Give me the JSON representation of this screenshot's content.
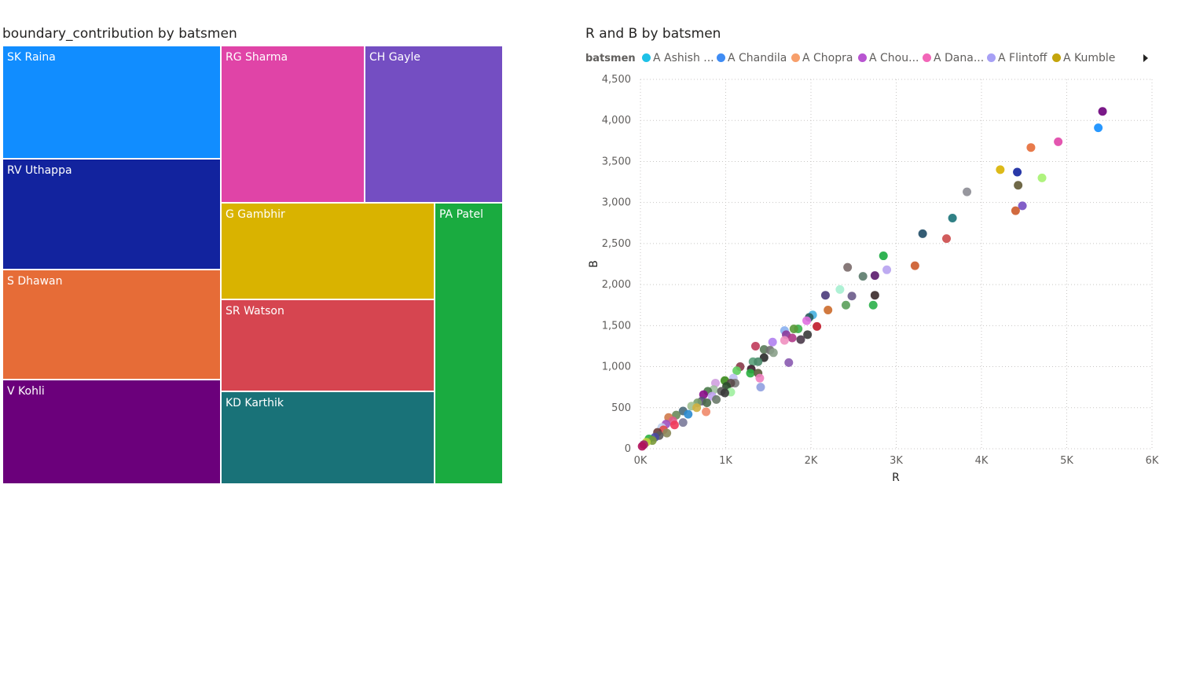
{
  "chart_data": [
    {
      "type": "treemap",
      "title": "boundary_contribution by batsmen",
      "tiles": [
        {
          "label": "SK Raina",
          "color": "#118dff"
        },
        {
          "label": "RV Uthappa",
          "color": "#12239e"
        },
        {
          "label": "S Dhawan",
          "color": "#e66c37"
        },
        {
          "label": "V Kohli",
          "color": "#6b007b"
        },
        {
          "label": "RG Sharma",
          "color": "#e044a7"
        },
        {
          "label": "CH Gayle",
          "color": "#744ec2"
        },
        {
          "label": "G Gambhir",
          "color": "#d9b300"
        },
        {
          "label": "SR Watson",
          "color": "#d64550"
        },
        {
          "label": "KD Karthik",
          "color": "#197278"
        },
        {
          "label": "PA Patel",
          "color": "#1aab40"
        }
      ]
    },
    {
      "type": "scatter",
      "title": "R and B by batsmen",
      "xlabel": "R",
      "ylabel": "B",
      "xlim": [
        0,
        6000
      ],
      "ylim": [
        0,
        4500
      ],
      "grid": true,
      "legend_title": "batsmen",
      "legend_position": "top",
      "legend": [
        {
          "name": "A Ashish ...",
          "color": "#1ec1e7"
        },
        {
          "name": "A Chandila",
          "color": "#3f8cf4"
        },
        {
          "name": "A Chopra",
          "color": "#f79f6b"
        },
        {
          "name": "A Chou...",
          "color": "#b855d1"
        },
        {
          "name": "A Dana...",
          "color": "#f266b8"
        },
        {
          "name": "A Flintoff",
          "color": "#a7a0f5"
        },
        {
          "name": "A Kumble",
          "color": "#c4a50c"
        }
      ],
      "x_ticks": [
        "0K",
        "1K",
        "2K",
        "3K",
        "4K",
        "5K",
        "6K"
      ],
      "y_ticks": [
        "0",
        "500",
        "1,000",
        "1,500",
        "2,000",
        "2,500",
        "3,000",
        "3,500",
        "4,000",
        "4,500"
      ],
      "points": [
        {
          "x": 5420,
          "y": 4110,
          "color": "#6b007b"
        },
        {
          "x": 5370,
          "y": 3910,
          "color": "#118dff"
        },
        {
          "x": 4900,
          "y": 3740,
          "color": "#e044a7"
        },
        {
          "x": 4580,
          "y": 3670,
          "color": "#e66c37"
        },
        {
          "x": 4220,
          "y": 3400,
          "color": "#d9b300"
        },
        {
          "x": 4420,
          "y": 3370,
          "color": "#12239e"
        },
        {
          "x": 4710,
          "y": 3300,
          "color": "#a6f270"
        },
        {
          "x": 4430,
          "y": 3210,
          "color": "#605934"
        },
        {
          "x": 3830,
          "y": 3130,
          "color": "#8c8c93"
        },
        {
          "x": 4480,
          "y": 2960,
          "color": "#744ec2"
        },
        {
          "x": 4400,
          "y": 2900,
          "color": "#cc5a2a"
        },
        {
          "x": 3660,
          "y": 2810,
          "color": "#197278"
        },
        {
          "x": 3310,
          "y": 2620,
          "color": "#1f4b66"
        },
        {
          "x": 3590,
          "y": 2560,
          "color": "#cc4a4a"
        },
        {
          "x": 2850,
          "y": 2350,
          "color": "#1aab40"
        },
        {
          "x": 3220,
          "y": 2230,
          "color": "#cc5a2a"
        },
        {
          "x": 2430,
          "y": 2210,
          "color": "#7a6a6a"
        },
        {
          "x": 2890,
          "y": 2180,
          "color": "#b7a2f0"
        },
        {
          "x": 2750,
          "y": 2110,
          "color": "#5a1a6b"
        },
        {
          "x": 2610,
          "y": 2100,
          "color": "#5a7a6a"
        },
        {
          "x": 2340,
          "y": 1940,
          "color": "#a6f0d0"
        },
        {
          "x": 2170,
          "y": 1870,
          "color": "#4a3a7a"
        },
        {
          "x": 2480,
          "y": 1860,
          "color": "#6a5a8a"
        },
        {
          "x": 2750,
          "y": 1870,
          "color": "#3a2a2a"
        },
        {
          "x": 2410,
          "y": 1750,
          "color": "#5aa05a"
        },
        {
          "x": 2730,
          "y": 1750,
          "color": "#2ab04a"
        },
        {
          "x": 2200,
          "y": 1690,
          "color": "#cc6a2a"
        },
        {
          "x": 2020,
          "y": 1630,
          "color": "#45b0e0"
        },
        {
          "x": 1980,
          "y": 1600,
          "color": "#2a5a5a"
        },
        {
          "x": 1950,
          "y": 1560,
          "color": "#e070e0"
        },
        {
          "x": 2070,
          "y": 1490,
          "color": "#c01a2a"
        },
        {
          "x": 1850,
          "y": 1460,
          "color": "#3ab04a"
        },
        {
          "x": 1800,
          "y": 1460,
          "color": "#5a9a3a"
        },
        {
          "x": 1690,
          "y": 1440,
          "color": "#8ab0f0"
        },
        {
          "x": 1710,
          "y": 1390,
          "color": "#8a3a9a"
        },
        {
          "x": 1960,
          "y": 1390,
          "color": "#3a3a3a"
        },
        {
          "x": 1780,
          "y": 1350,
          "color": "#b03a8a"
        },
        {
          "x": 1880,
          "y": 1330,
          "color": "#4a3a4a"
        },
        {
          "x": 1690,
          "y": 1320,
          "color": "#f090c0"
        },
        {
          "x": 1550,
          "y": 1300,
          "color": "#b080f0"
        },
        {
          "x": 1350,
          "y": 1250,
          "color": "#c03a5a"
        },
        {
          "x": 1450,
          "y": 1210,
          "color": "#5a7a5a"
        },
        {
          "x": 1520,
          "y": 1200,
          "color": "#707070"
        },
        {
          "x": 1560,
          "y": 1170,
          "color": "#8aa08a"
        },
        {
          "x": 1450,
          "y": 1110,
          "color": "#2a2a2a"
        },
        {
          "x": 1320,
          "y": 1060,
          "color": "#5aa07a"
        },
        {
          "x": 1380,
          "y": 1060,
          "color": "#4a8a6a"
        },
        {
          "x": 1740,
          "y": 1050,
          "color": "#8a5ab0"
        },
        {
          "x": 1170,
          "y": 1000,
          "color": "#8a3a4a"
        },
        {
          "x": 1300,
          "y": 970,
          "color": "#3a1a2a"
        },
        {
          "x": 1130,
          "y": 950,
          "color": "#60d060"
        },
        {
          "x": 1290,
          "y": 920,
          "color": "#2ab040"
        },
        {
          "x": 1380,
          "y": 920,
          "color": "#5a5a3a"
        },
        {
          "x": 1090,
          "y": 860,
          "color": "#c0c0f0"
        },
        {
          "x": 1400,
          "y": 860,
          "color": "#f080c0"
        },
        {
          "x": 990,
          "y": 830,
          "color": "#3a8a1a"
        },
        {
          "x": 880,
          "y": 800,
          "color": "#d0a0e0"
        },
        {
          "x": 1110,
          "y": 800,
          "color": "#7a7a7a"
        },
        {
          "x": 1060,
          "y": 800,
          "color": "#5a4a4a"
        },
        {
          "x": 1010,
          "y": 760,
          "color": "#2a4a2a"
        },
        {
          "x": 1410,
          "y": 750,
          "color": "#90a0e0"
        },
        {
          "x": 860,
          "y": 720,
          "color": "#a0c0a0"
        },
        {
          "x": 790,
          "y": 700,
          "color": "#4a7a4a"
        },
        {
          "x": 950,
          "y": 700,
          "color": "#5a5a5a"
        },
        {
          "x": 1060,
          "y": 690,
          "color": "#a0f0a0"
        },
        {
          "x": 990,
          "y": 680,
          "color": "#3a3a3a"
        },
        {
          "x": 740,
          "y": 660,
          "color": "#8a0a8a"
        },
        {
          "x": 840,
          "y": 640,
          "color": "#c0a0f0"
        },
        {
          "x": 890,
          "y": 600,
          "color": "#6a7a6a"
        },
        {
          "x": 720,
          "y": 580,
          "color": "#5a4a7a"
        },
        {
          "x": 670,
          "y": 560,
          "color": "#7aa06a"
        },
        {
          "x": 780,
          "y": 560,
          "color": "#4a6a4a"
        },
        {
          "x": 600,
          "y": 520,
          "color": "#a0c090"
        },
        {
          "x": 660,
          "y": 500,
          "color": "#d0b040"
        },
        {
          "x": 500,
          "y": 460,
          "color": "#4a6a7a"
        },
        {
          "x": 770,
          "y": 450,
          "color": "#f08a6a"
        },
        {
          "x": 560,
          "y": 420,
          "color": "#2a8ad0"
        },
        {
          "x": 420,
          "y": 410,
          "color": "#6a8a5a"
        },
        {
          "x": 330,
          "y": 380,
          "color": "#d07a4a"
        },
        {
          "x": 380,
          "y": 340,
          "color": "#e05a8a"
        },
        {
          "x": 500,
          "y": 320,
          "color": "#7a7a9a"
        },
        {
          "x": 300,
          "y": 300,
          "color": "#a050c0"
        },
        {
          "x": 400,
          "y": 290,
          "color": "#f03a5a"
        },
        {
          "x": 250,
          "y": 260,
          "color": "#c0d0f0"
        },
        {
          "x": 270,
          "y": 230,
          "color": "#e04a4a"
        },
        {
          "x": 200,
          "y": 200,
          "color": "#6a3a3a"
        },
        {
          "x": 310,
          "y": 190,
          "color": "#8a8a5a"
        },
        {
          "x": 220,
          "y": 160,
          "color": "#5a5a5a"
        },
        {
          "x": 170,
          "y": 140,
          "color": "#4a4aa0"
        },
        {
          "x": 100,
          "y": 120,
          "color": "#2ab040"
        },
        {
          "x": 140,
          "y": 100,
          "color": "#7a9a3a"
        },
        {
          "x": 70,
          "y": 80,
          "color": "#c0d040"
        },
        {
          "x": 40,
          "y": 50,
          "color": "#a01a6a"
        },
        {
          "x": 20,
          "y": 30,
          "color": "#b0105a"
        }
      ]
    }
  ]
}
